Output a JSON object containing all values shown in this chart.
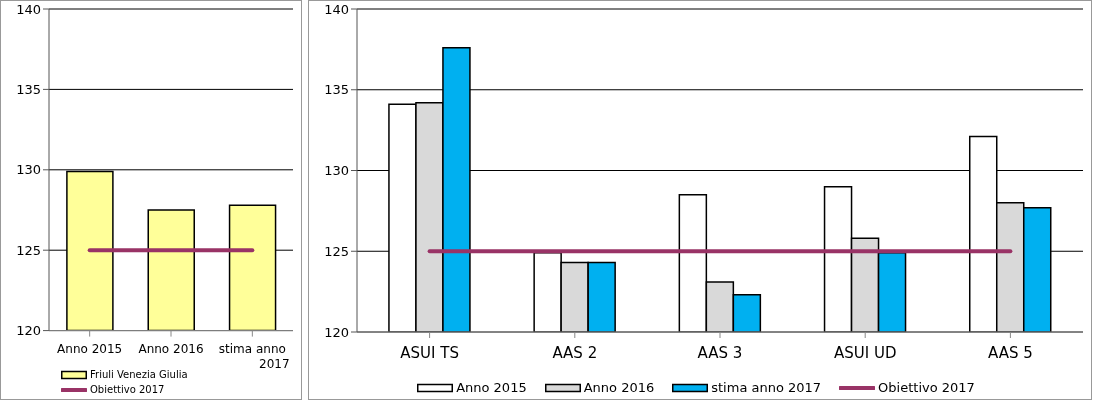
{
  "chart_data": [
    {
      "type": "bar",
      "categories": [
        "Anno 2015",
        "Anno 2016",
        "stima anno 2017"
      ],
      "series": [
        {
          "name": "Friuli Venezia Giulia",
          "color": "#ffff99",
          "values": [
            129.9,
            127.5,
            127.8
          ]
        },
        {
          "name": "Obiettivo 2017",
          "type": "line",
          "color": "#993366",
          "values": [
            125,
            125,
            125
          ]
        }
      ],
      "ylim": [
        120,
        140
      ],
      "yticks": [
        120,
        125,
        130,
        135,
        140
      ],
      "grid": "y",
      "legend": "bottom"
    },
    {
      "type": "bar",
      "categories": [
        "ASUI TS",
        "AAS 2",
        "AAS 3",
        "ASUI UD",
        "AAS 5"
      ],
      "series": [
        {
          "name": "Anno 2015",
          "color": "#ffffff",
          "values": [
            134.1,
            124.9,
            128.5,
            129.0,
            132.1
          ]
        },
        {
          "name": "Anno 2016",
          "color": "#d9d9d9",
          "values": [
            134.2,
            124.3,
            123.1,
            125.8,
            128.0
          ]
        },
        {
          "name": "stima anno 2017",
          "color": "#00b0f0",
          "values": [
            137.6,
            124.3,
            122.3,
            124.9,
            127.7
          ]
        },
        {
          "name": "Obiettivo 2017",
          "type": "line",
          "color": "#993366",
          "values": [
            125,
            125,
            125,
            125,
            125
          ]
        }
      ],
      "ylim": [
        120,
        140
      ],
      "yticks": [
        120,
        125,
        130,
        135,
        140
      ],
      "grid": "y",
      "legend": "bottom"
    }
  ]
}
